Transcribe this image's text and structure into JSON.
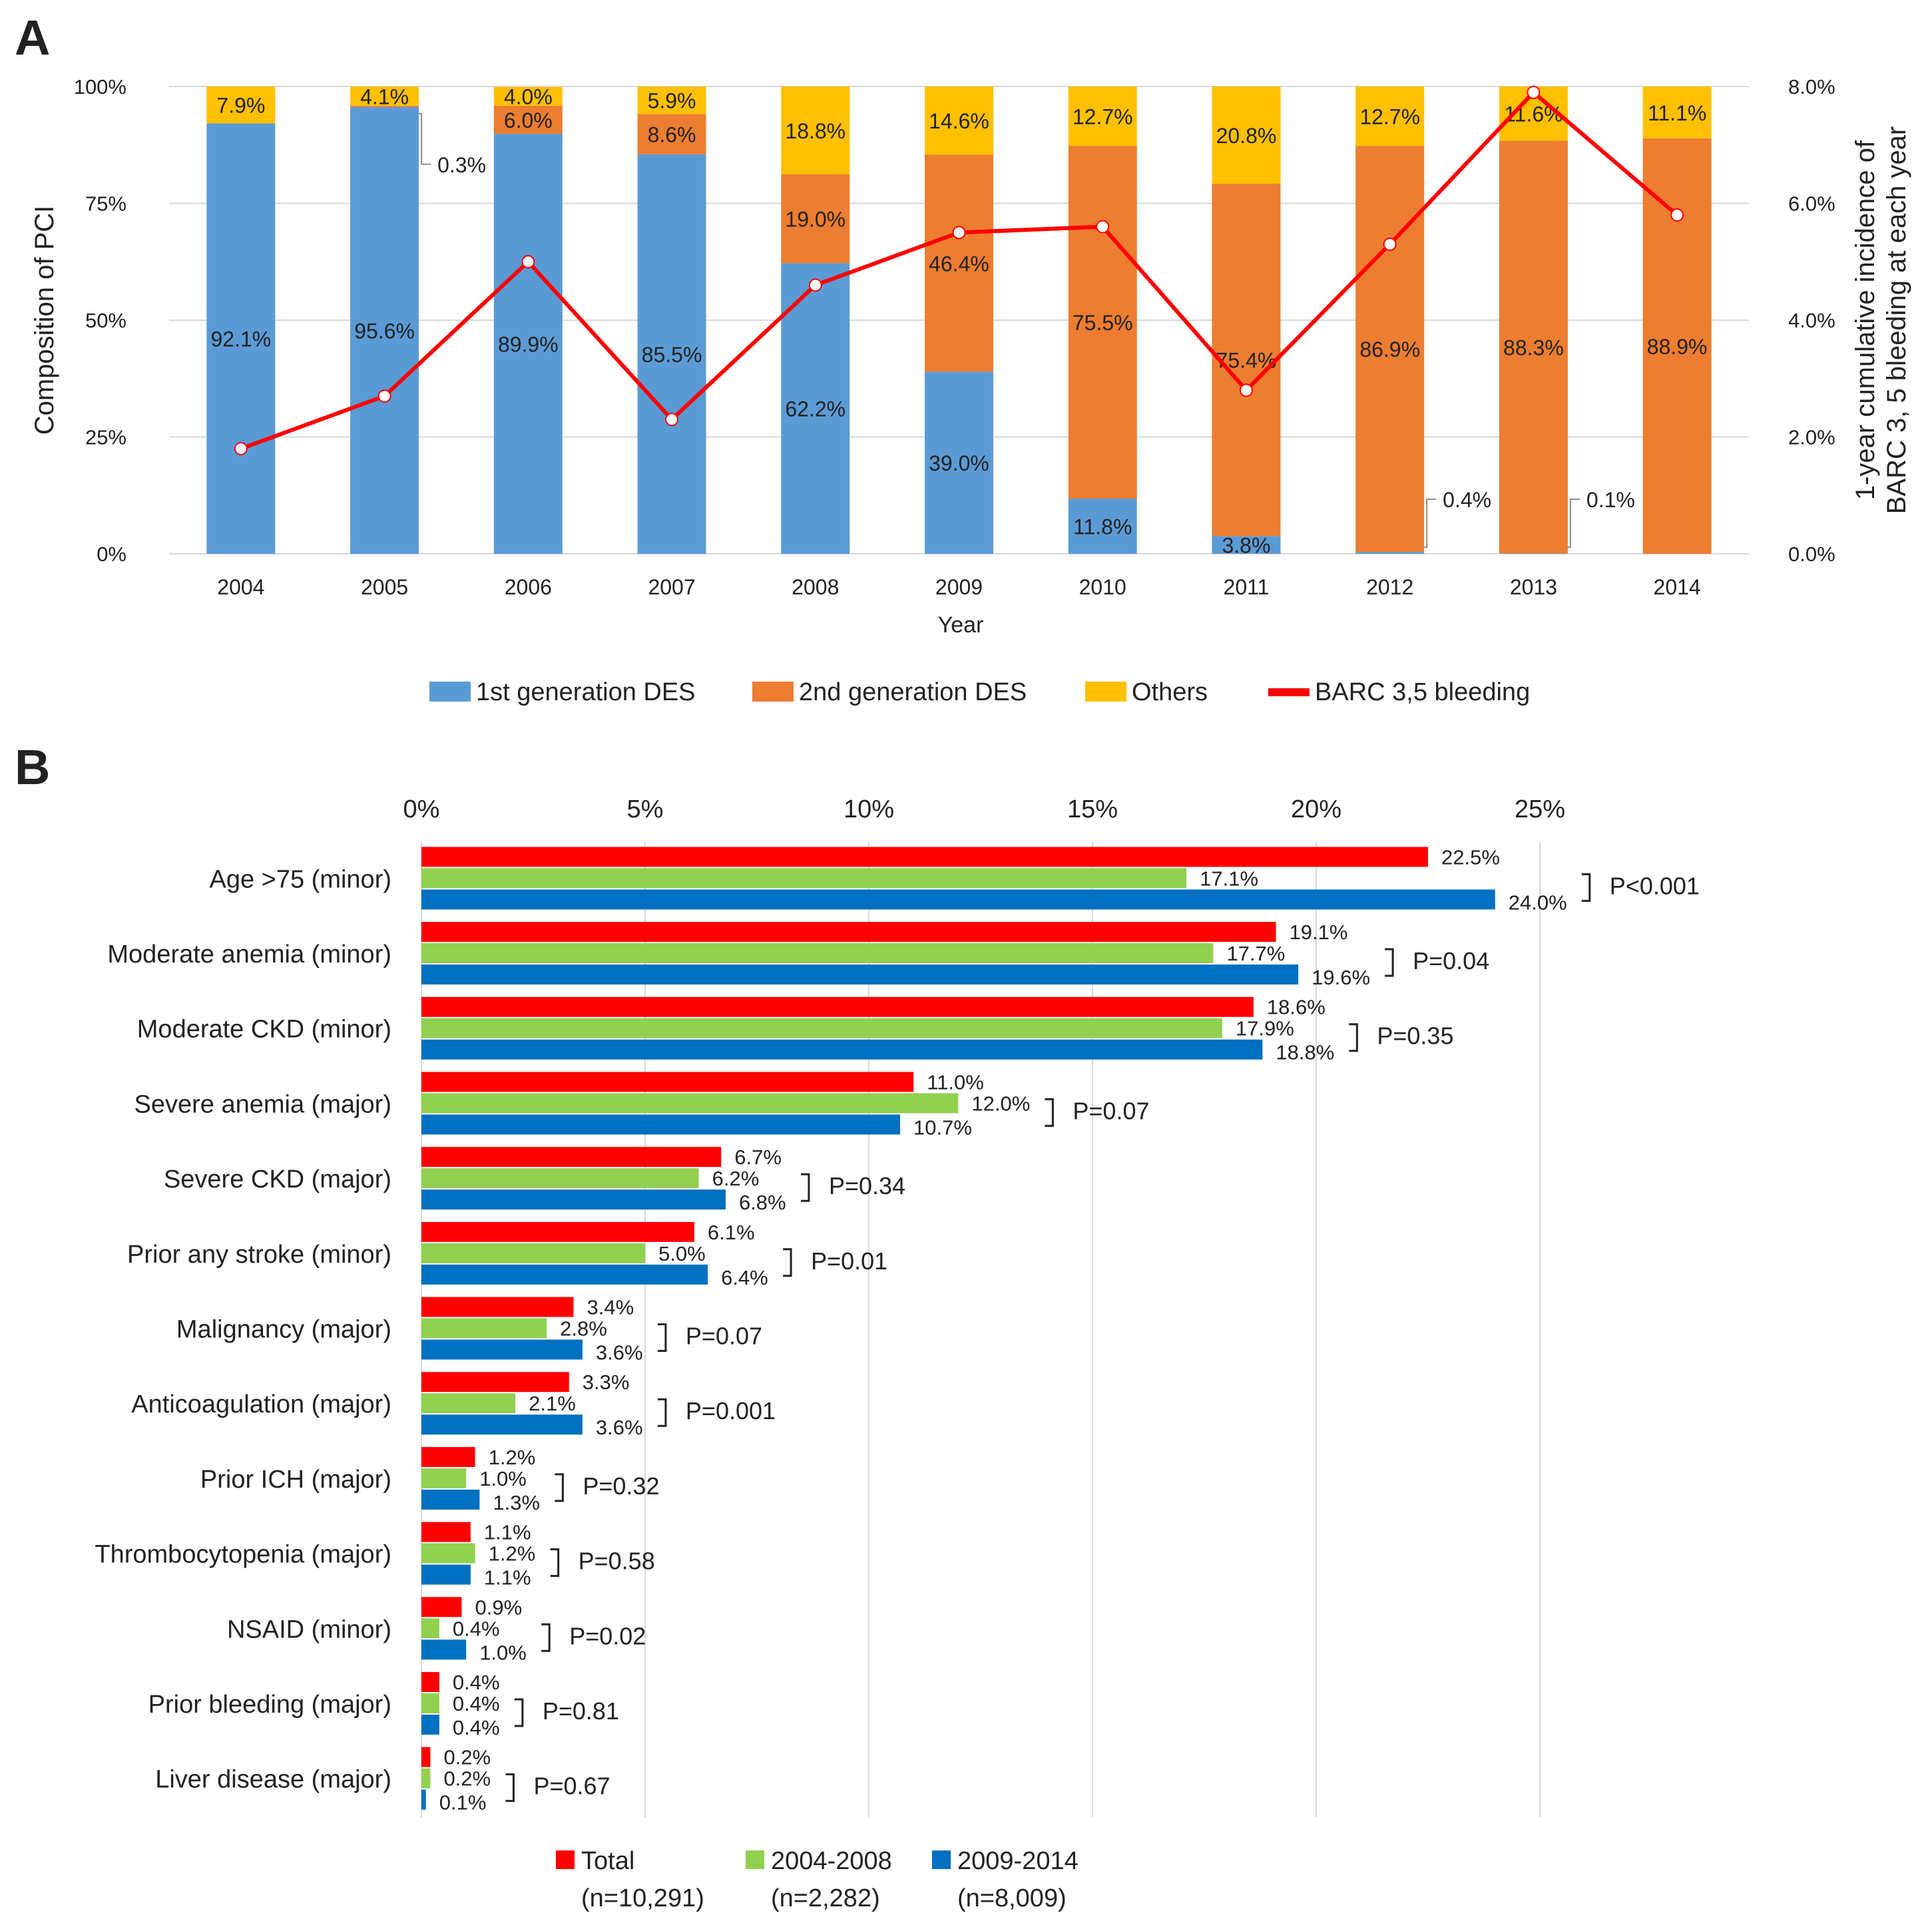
{
  "chart_data": [
    {
      "panel": "A",
      "type": "bar",
      "stacked": true,
      "secondary_type": "line",
      "xlabel": "Year",
      "ylabel": "Composition of PCI",
      "y2label_line1": "1-year cumulative incidence of",
      "y2label_line2": "BARC 3, 5 bleeding at each year",
      "ylim": [
        0,
        100
      ],
      "y2lim": [
        0,
        8
      ],
      "yticks": [
        "0%",
        "25%",
        "50%",
        "75%",
        "100%"
      ],
      "y2ticks": [
        "0.0%",
        "2.0%",
        "4.0%",
        "6.0%",
        "8.0%"
      ],
      "categories": [
        "2004",
        "2005",
        "2006",
        "2007",
        "2008",
        "2009",
        "2010",
        "2011",
        "2012",
        "2013",
        "2014"
      ],
      "series": [
        {
          "name": "1st generation DES",
          "color": "#5B9BD5",
          "values": [
            92.1,
            95.6,
            89.9,
            85.5,
            62.2,
            39.0,
            11.8,
            3.8,
            0.4,
            0.1,
            0
          ],
          "labels": [
            "92.1%",
            "95.6%",
            "89.9%",
            "85.5%",
            "62.2%",
            "39.0%",
            "11.8%",
            "3.8%",
            "0.4%",
            "0.1%",
            ""
          ]
        },
        {
          "name": "2nd generation DES",
          "color": "#ED7D31",
          "values": [
            0,
            0.3,
            6.0,
            8.6,
            19.0,
            46.4,
            75.5,
            75.4,
            86.9,
            88.3,
            88.9
          ],
          "labels": [
            "",
            "0.3%",
            "6.0%",
            "8.6%",
            "19.0%",
            "46.4%",
            "75.5%",
            "75.4%",
            "86.9%",
            "88.3%",
            "88.9%"
          ]
        },
        {
          "name": "Others",
          "color": "#FFC000",
          "values": [
            7.9,
            4.1,
            4.0,
            5.9,
            18.8,
            14.6,
            12.7,
            20.8,
            12.7,
            11.6,
            11.1
          ],
          "labels": [
            "7.9%",
            "4.1%",
            "4.0%",
            "5.9%",
            "18.8%",
            "14.6%",
            "12.7%",
            "20.8%",
            "12.7%",
            "11.6%",
            "11.1%"
          ]
        }
      ],
      "line_series": {
        "name": "BARC 3,5 bleeding",
        "color": "#FF0000",
        "axis": "right",
        "values": [
          1.8,
          2.7,
          5.0,
          2.3,
          4.6,
          5.5,
          5.6,
          2.8,
          5.3,
          7.9,
          5.8
        ]
      },
      "legend": [
        "1st generation DES",
        "2nd generation DES",
        "Others",
        "BARC 3,5 bleeding"
      ]
    },
    {
      "panel": "B",
      "type": "bar",
      "orientation": "horizontal",
      "xlim": [
        0,
        25
      ],
      "xticks": [
        "0%",
        "5%",
        "10%",
        "15%",
        "20%",
        "25%"
      ],
      "categories": [
        "Age >75 (minor)",
        "Moderate anemia (minor)",
        "Moderate CKD (minor)",
        "Severe anemia (major)",
        "Severe CKD (major)",
        "Prior any stroke (minor)",
        "Malignancy (major)",
        "Anticoagulation (major)",
        "Prior ICH (major)",
        "Thrombocytopenia (major)",
        "NSAID (minor)",
        "Prior bleeding (major)",
        "Liver disease (major)"
      ],
      "series": [
        {
          "name": "Total",
          "sub": "(n=10,291)",
          "color": "#FF0000",
          "values": [
            22.5,
            19.1,
            18.6,
            11.0,
            6.7,
            6.1,
            3.4,
            3.3,
            1.2,
            1.1,
            0.9,
            0.4,
            0.2
          ],
          "labels": [
            "22.5%",
            "19.1%",
            "18.6%",
            "11.0%",
            "6.7%",
            "6.1%",
            "3.4%",
            "3.3%",
            "1.2%",
            "1.1%",
            "0.9%",
            "0.4%",
            "0.2%"
          ]
        },
        {
          "name": "2004-2008",
          "sub": "(n=2,282)",
          "color": "#92D050",
          "values": [
            17.1,
            17.7,
            17.9,
            12.0,
            6.2,
            5.0,
            2.8,
            2.1,
            1.0,
            1.2,
            0.4,
            0.4,
            0.2
          ],
          "labels": [
            "17.1%",
            "17.7%",
            "17.9%",
            "12.0%",
            "6.2%",
            "5.0%",
            "2.8%",
            "2.1%",
            "1.0%",
            "1.2%",
            "0.4%",
            "0.4%",
            "0.2%"
          ]
        },
        {
          "name": "2009-2014",
          "sub": "(n=8,009)",
          "color": "#0070C0",
          "values": [
            24.0,
            19.6,
            18.8,
            10.7,
            6.8,
            6.4,
            3.6,
            3.6,
            1.3,
            1.1,
            1.0,
            0.4,
            0.1
          ],
          "labels": [
            "24.0%",
            "19.6%",
            "18.8%",
            "10.7%",
            "6.8%",
            "6.4%",
            "3.6%",
            "3.6%",
            "1.3%",
            "1.1%",
            "1.0%",
            "0.4%",
            "0.1%"
          ]
        }
      ],
      "p_values": [
        "P<0.001",
        "P=0.04",
        "P=0.35",
        "P=0.07",
        "P=0.34",
        "P=0.01",
        "P=0.07",
        "P=0.001",
        "P=0.32",
        "P=0.58",
        "P=0.02",
        "P=0.81",
        "P=0.67"
      ]
    }
  ],
  "panel_labels": {
    "a": "A",
    "b": "B"
  }
}
